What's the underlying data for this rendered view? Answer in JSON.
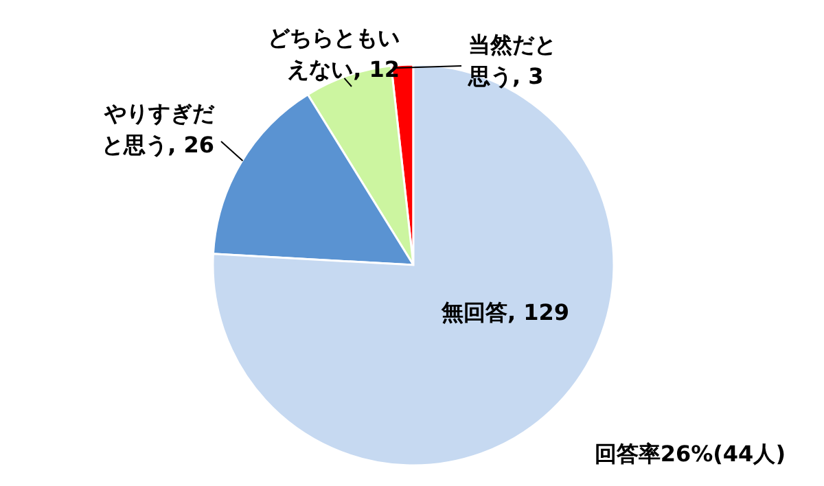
{
  "chart_data": {
    "type": "pie",
    "categories": [
      "当然だと思う",
      "どちらともいえない",
      "やりすぎだと思う",
      "無回答"
    ],
    "values": [
      3,
      12,
      26,
      129
    ],
    "colors": [
      "#ff0000",
      "#ccf5a0",
      "#5a93d2",
      "#c6d9f1"
    ],
    "value_labels": [
      ", 3",
      ", 12",
      ", 26",
      ", 129"
    ],
    "legend": false,
    "annotations": [
      "回答率26%(44人)"
    ]
  }
}
